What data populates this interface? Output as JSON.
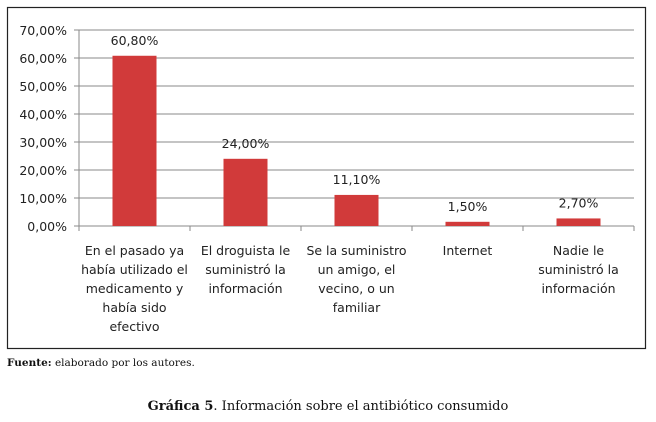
{
  "chart_data": {
    "type": "bar",
    "title": "",
    "xlabel": "",
    "ylabel": "",
    "ylim": [
      0,
      70
    ],
    "yticks": [
      "0,00%",
      "10,00%",
      "20,00%",
      "30,00%",
      "40,00%",
      "50,00%",
      "60,00%",
      "70,00%"
    ],
    "grid": true,
    "categories": [
      [
        "En el pasado ya",
        "había utilizado el",
        "medicamento y",
        "había sido",
        "efectivo"
      ],
      [
        "El droguista le",
        "suministró la",
        "información"
      ],
      [
        "Se la suministro",
        "un  amigo, el",
        "vecino, o un",
        "familiar"
      ],
      [
        "Internet"
      ],
      [
        "Nadie le",
        "suministró la",
        "información"
      ]
    ],
    "values": [
      60.8,
      24.0,
      11.1,
      1.5,
      2.7
    ],
    "data_labels": [
      "60,80%",
      "24,00%",
      "11,10%",
      "1,50%",
      "2,70%"
    ],
    "bar_color": "#d13a3a"
  },
  "source": {
    "label": "Fuente:",
    "text": " elaborado por los autores."
  },
  "caption": {
    "label": "Gráfica 5",
    "text": ". Información sobre el antibiótico consumido"
  }
}
